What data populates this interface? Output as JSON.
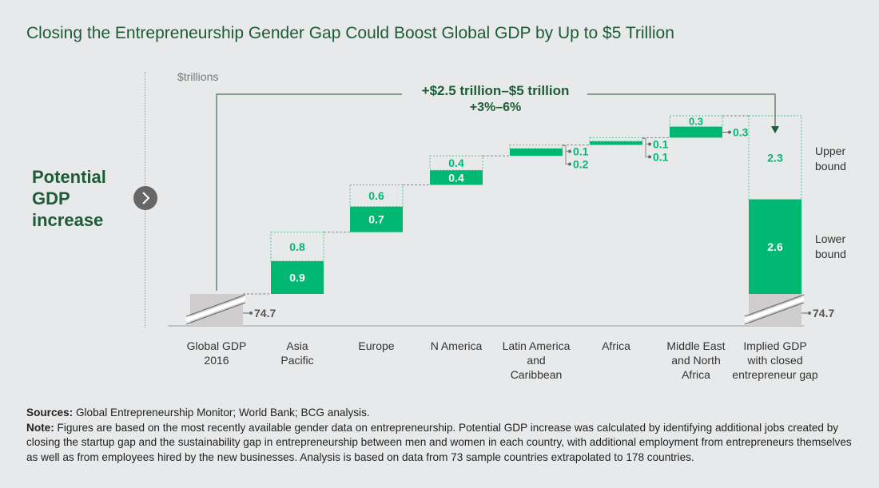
{
  "title": "Closing the Entrepreneurship Gender Gap Could Boost Global GDP by Up to $5 Trillion",
  "side_label": "Potential GDP increase",
  "icons": {
    "arrow": "chevron-right-icon"
  },
  "colors": {
    "green": "#00b872",
    "dark_green": "#1d5c36",
    "base_gray": "#cfcdcd"
  },
  "notes": {
    "sources_label": "Sources:",
    "sources": "Global Entrepreneurship Monitor; World Bank; BCG analysis.",
    "note_label": "Note:",
    "note": "Figures are based on the most recently available gender data on entrepreneurship. Potential GDP increase was calculated by identifying additional jobs created by closing the startup gap and the sustainability gap in entrepreneurship between men and women in each country, with additional employment from entrepreneurs themselves as well as from employees hired by the new businesses. Analysis is based on data from 73 sample countries extrapolated to 178 countries."
  },
  "chart_data": {
    "type": "bar",
    "subtype": "waterfall",
    "ylabel": "$trillions",
    "annotation": {
      "line1": "+$2.5 trillion–$5 trillion",
      "line2": "+3%–6%"
    },
    "base_label": "74.7",
    "categories": [
      "Global GDP 2016",
      "Asia Pacific",
      "Europe",
      "N America",
      "Latin America and Caribbean",
      "Africa",
      "Middle East and North Africa",
      "Implied GDP with closed entrepreneur gap"
    ],
    "category_lines": [
      [
        "Global GDP",
        "2016"
      ],
      [
        "Asia",
        "Pacific"
      ],
      [
        "Europe"
      ],
      [
        "N America"
      ],
      [
        "Latin America",
        "and",
        "Caribbean"
      ],
      [
        "Africa"
      ],
      [
        "Middle East",
        "and North",
        "Africa"
      ],
      [
        "Implied GDP",
        "with closed",
        "entrepreneur gap"
      ]
    ],
    "base": 74.7,
    "series": [
      {
        "name": "Lower bound",
        "values": [
          null,
          0.9,
          0.7,
          0.4,
          0.2,
          0.1,
          0.3,
          2.6
        ]
      },
      {
        "name": "Upper bound",
        "values": [
          null,
          0.8,
          0.6,
          0.4,
          0.1,
          0.1,
          0.3,
          2.3
        ]
      }
    ],
    "legend": {
      "upper": [
        "Upper",
        "bound"
      ],
      "lower": [
        "Lower",
        "bound"
      ],
      "placement": "right"
    },
    "total_labels": [
      "74.7",
      "74.7"
    ]
  }
}
